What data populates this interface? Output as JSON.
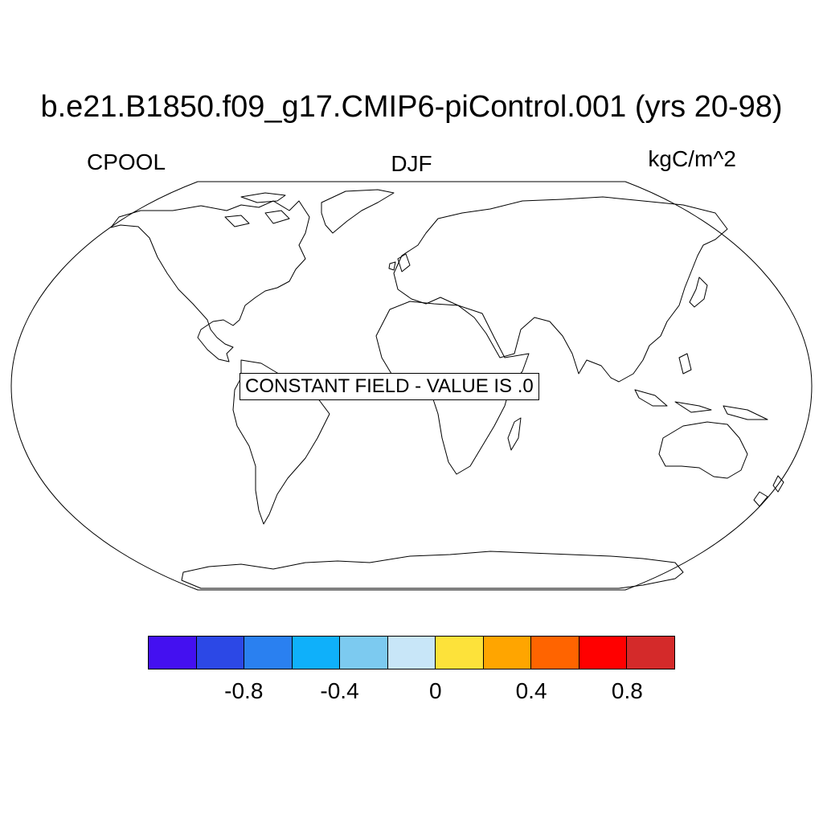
{
  "title": "b.e21.B1850.f09_g17.CMIP6-piControl.001 (yrs 20-98)",
  "variable": "CPOOL",
  "season": "DJF",
  "units": "kgC/m^2",
  "notice": "CONSTANT FIELD - VALUE IS .0",
  "colorbar": {
    "colors": [
      "#4410f0",
      "#2c48e6",
      "#2a80f0",
      "#0fb0fa",
      "#7ccaf0",
      "#c8e6f8",
      "#fde23a",
      "#ffa500",
      "#ff6400",
      "#ff0000",
      "#d42a2a"
    ],
    "labels": [
      "-0.8",
      "-0.4",
      "0",
      "0.4",
      "0.8"
    ],
    "label_boundaries": [
      2,
      4,
      6,
      8,
      10
    ]
  }
}
